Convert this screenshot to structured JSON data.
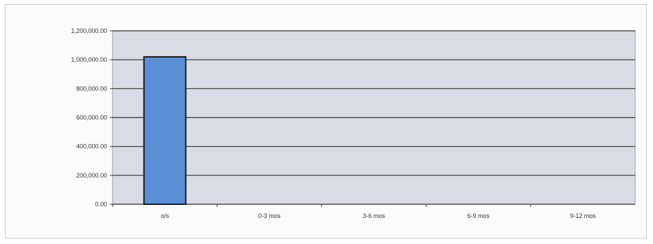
{
  "chart_data": {
    "type": "bar",
    "title": "",
    "xlabel": "",
    "ylabel": "",
    "categories": [
      "o/s",
      "0-3 mos",
      "3-6 mos",
      "6-9 mos",
      "9-12 mos"
    ],
    "values": [
      1020000,
      0,
      0,
      0,
      0
    ],
    "ylim": [
      0,
      1200000
    ],
    "y_ticks": [
      0,
      200000,
      400000,
      600000,
      800000,
      1000000,
      1200000
    ],
    "y_tick_labels": [
      "0.00",
      "200,000.00",
      "400,000.00",
      "600,000.00",
      "800,000.00",
      "1,000,000.00",
      "1,200,000.00"
    ],
    "grid": true,
    "legend": "none",
    "colors": {
      "bar_fill": "#5b8fd6",
      "bar_stroke": "#1a1a1a",
      "plot_background": "#d9dce6",
      "gridline": "#2e2e2e"
    }
  }
}
